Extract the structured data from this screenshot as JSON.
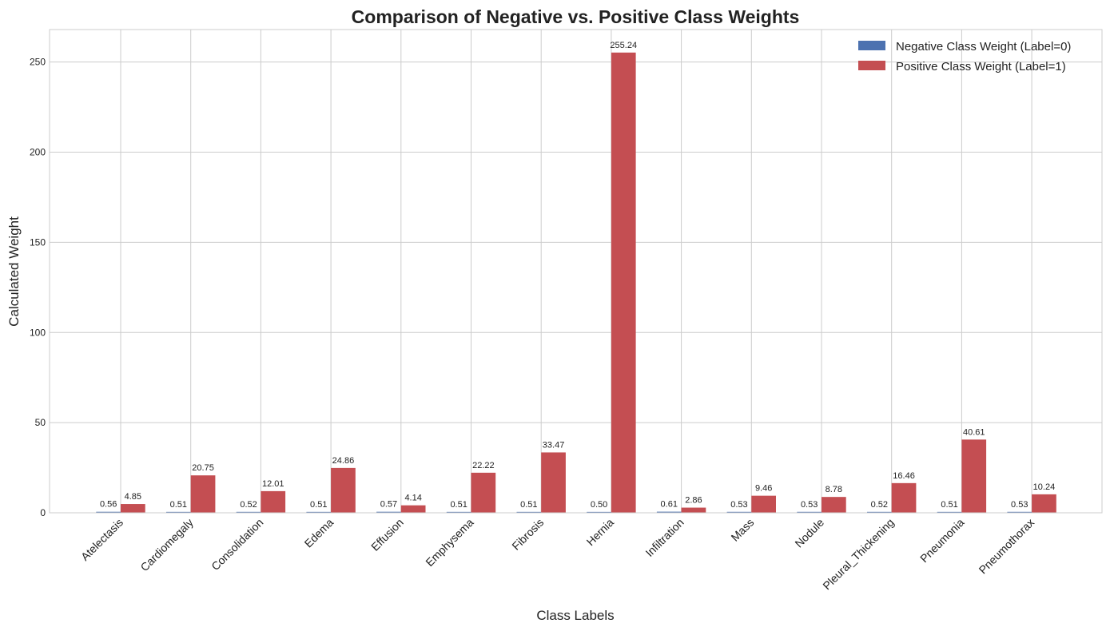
{
  "chart_data": {
    "type": "bar",
    "title": "Comparison of Negative vs. Positive Class Weights",
    "xlabel": "Class Labels",
    "ylabel": "Calculated Weight",
    "ylim": [
      0,
      268
    ],
    "yticks": [
      0,
      50,
      100,
      150,
      200,
      250
    ],
    "grid": true,
    "legend_position": "top-right",
    "categories": [
      "Atelectasis",
      "Cardiomegaly",
      "Consolidation",
      "Edema",
      "Effusion",
      "Emphysema",
      "Fibrosis",
      "Hernia",
      "Infiltration",
      "Mass",
      "Nodule",
      "Pleural_Thickening",
      "Pneumonia",
      "Pneumothorax"
    ],
    "series": [
      {
        "name": "Negative Class Weight (Label=0)",
        "color": "#4c72b0",
        "values": [
          0.56,
          0.51,
          0.52,
          0.51,
          0.57,
          0.51,
          0.51,
          0.5,
          0.61,
          0.53,
          0.53,
          0.52,
          0.51,
          0.53
        ],
        "labels": [
          "0.56",
          "0.51",
          "0.52",
          "0.51",
          "0.57",
          "0.51",
          "0.51",
          "0.50",
          "0.61",
          "0.53",
          "0.53",
          "0.52",
          "0.51",
          "0.53"
        ]
      },
      {
        "name": "Positive Class Weight (Label=1)",
        "color": "#c44e52",
        "values": [
          4.85,
          20.75,
          12.01,
          24.86,
          4.14,
          22.22,
          33.47,
          255.24,
          2.86,
          9.46,
          8.78,
          16.46,
          40.61,
          10.24
        ],
        "labels": [
          "4.85",
          "20.75",
          "12.01",
          "24.86",
          "4.14",
          "22.22",
          "33.47",
          "255.24",
          "2.86",
          "9.46",
          "8.78",
          "16.46",
          "40.61",
          "10.24"
        ]
      }
    ]
  }
}
